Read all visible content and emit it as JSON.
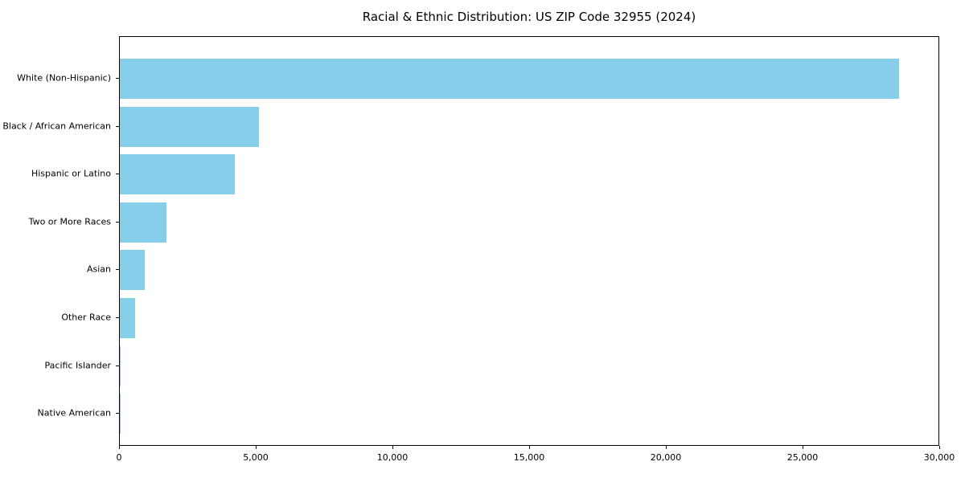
{
  "chart_data": {
    "type": "bar",
    "orientation": "horizontal",
    "title": "Racial & Ethnic Distribution: US ZIP Code 32955 (2024)",
    "categories": [
      "White (Non-Hispanic)",
      "Black / African American",
      "Hispanic or Latino",
      "Two or More Races",
      "Asian",
      "Other Race",
      "Pacific Islander",
      "Native American"
    ],
    "values": [
      28500,
      5100,
      4200,
      1700,
      900,
      550,
      30,
      20
    ],
    "xlim": [
      0,
      30000
    ],
    "xticks": {
      "values": [
        0,
        5000,
        10000,
        15000,
        20000,
        25000,
        30000
      ],
      "labels": [
        "0",
        "5,000",
        "10,000",
        "15,000",
        "20,000",
        "25,000",
        "30,000"
      ]
    },
    "bar_color": "#87CEEB",
    "grid": false,
    "legend": null,
    "xlabel": "",
    "ylabel": ""
  }
}
